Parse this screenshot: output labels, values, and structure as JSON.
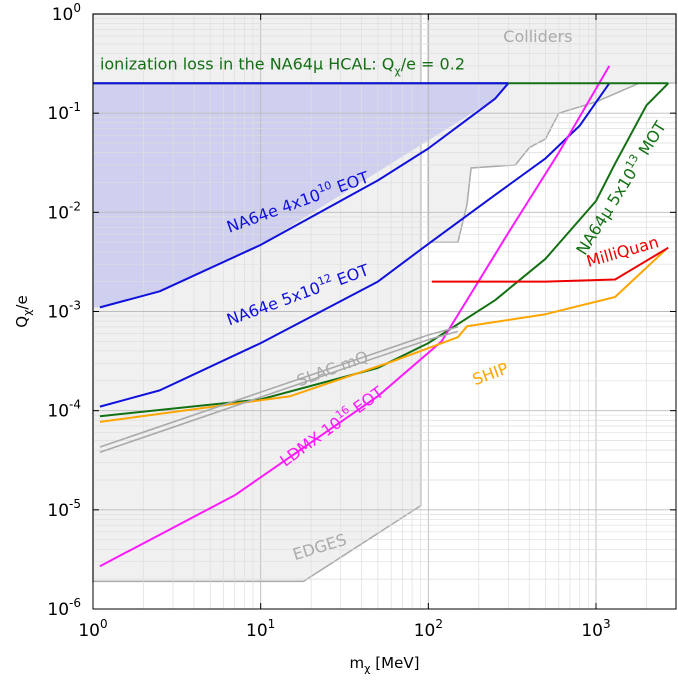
{
  "chart_data": {
    "type": "line",
    "x_scale": "log",
    "y_scale": "log",
    "xlim": [
      1,
      3000
    ],
    "ylim": [
      1e-06,
      1
    ],
    "xlabel": {
      "base": "m",
      "sub": "χ",
      "rest": " [MeV]"
    },
    "ylabel": {
      "base": "Q",
      "sub": "χ",
      "rest": "/e"
    },
    "x_ticks": [
      {
        "value": 1,
        "base": "10",
        "exp": "0"
      },
      {
        "value": 10,
        "base": "10",
        "exp": "1"
      },
      {
        "value": 100,
        "base": "10",
        "exp": "2"
      },
      {
        "value": 1000,
        "base": "10",
        "exp": "3"
      }
    ],
    "y_ticks": [
      {
        "value": 1e-06,
        "base": "10",
        "exp": "-6"
      },
      {
        "value": 1e-05,
        "base": "10",
        "exp": "-5"
      },
      {
        "value": 0.0001,
        "base": "10",
        "exp": "-4"
      },
      {
        "value": 0.001,
        "base": "10",
        "exp": "-3"
      },
      {
        "value": 0.01,
        "base": "10",
        "exp": "-2"
      },
      {
        "value": 0.1,
        "base": "10",
        "exp": "-1"
      },
      {
        "value": 1,
        "base": "10",
        "exp": "0"
      }
    ],
    "grid": true,
    "colors": {
      "na64e": "#1010dd",
      "na64e_fill": "#c9c9ee",
      "na64mu": "#147014",
      "ldmx": "#ff19ff",
      "ship": "#ffa500",
      "milliquan": "#ee0000",
      "excluded": "#aaaaaa",
      "excluded_fill": "#f0f0f0"
    },
    "regions": [
      {
        "name": "excluded-region-colliders",
        "points": [
          [
            100,
            1
          ],
          [
            3000,
            1
          ],
          [
            3000,
            0.2
          ],
          [
            1800,
            0.2
          ],
          [
            1000,
            0.13
          ],
          [
            600,
            0.1
          ],
          [
            500,
            0.055
          ],
          [
            400,
            0.045
          ],
          [
            330,
            0.03
          ],
          [
            180,
            0.028
          ],
          [
            170,
            0.012
          ],
          [
            150,
            0.005
          ],
          [
            100,
            0.005
          ]
        ]
      },
      {
        "name": "excluded-region-slac-edges",
        "points": [
          [
            1,
            1.9e-06
          ],
          [
            18,
            1.9e-06
          ],
          [
            90,
            1.1e-05
          ],
          [
            90,
            1
          ],
          [
            1,
            1
          ]
        ]
      },
      {
        "name": "na64e-excluded-region",
        "points": [
          [
            1,
            0.2
          ],
          [
            300,
            0.2
          ],
          [
            250,
            0.14
          ],
          [
            10,
            0.0047
          ],
          [
            2.5,
            0.0016
          ],
          [
            1.1,
            0.0011
          ],
          [
            1,
            0.0011
          ]
        ]
      }
    ],
    "series": [
      {
        "name": "NA64e 4x10^10 EOT",
        "color_key": "na64e",
        "points": [
          [
            1.1,
            0.0011
          ],
          [
            2.5,
            0.0016
          ],
          [
            10,
            0.0047
          ],
          [
            50,
            0.021
          ],
          [
            100,
            0.044
          ],
          [
            250,
            0.14
          ],
          [
            300,
            0.2
          ]
        ]
      },
      {
        "name": "NA64e 5x10^12 EOT",
        "color_key": "na64e",
        "points": [
          [
            1.1,
            0.00011
          ],
          [
            2.5,
            0.00016
          ],
          [
            10,
            0.00048
          ],
          [
            50,
            0.002
          ],
          [
            100,
            0.0048
          ],
          [
            250,
            0.015
          ],
          [
            500,
            0.035
          ],
          [
            800,
            0.075
          ],
          [
            1200,
            0.2
          ]
        ]
      },
      {
        "name": "NA64μ 5x10^13 MOT",
        "color_key": "na64mu",
        "points": [
          [
            1.1,
            8.8e-05
          ],
          [
            10,
            0.00013
          ],
          [
            50,
            0.00027
          ],
          [
            100,
            0.00048
          ],
          [
            250,
            0.0013
          ],
          [
            500,
            0.0034
          ],
          [
            1000,
            0.013
          ],
          [
            1300,
            0.031
          ],
          [
            2000,
            0.12
          ],
          [
            2700,
            0.2
          ]
        ]
      },
      {
        "name": "LDMX 10^16 EOT",
        "color_key": "ldmx",
        "points": [
          [
            1.1,
            2.7e-06
          ],
          [
            7,
            1.4e-05
          ],
          [
            50,
            0.00014
          ],
          [
            120,
            0.0005
          ],
          [
            300,
            0.0062
          ],
          [
            600,
            0.04
          ],
          [
            1200,
            0.3
          ]
        ]
      },
      {
        "name": "SHIP",
        "color_key": "ship",
        "points": [
          [
            1.1,
            7.7e-05
          ],
          [
            15,
            0.00014
          ],
          [
            60,
            0.00031
          ],
          [
            150,
            0.00055
          ],
          [
            170,
            0.00071
          ],
          [
            500,
            0.00094
          ],
          [
            1300,
            0.0014
          ],
          [
            2600,
            0.0042
          ]
        ]
      },
      {
        "name": "MilliQuan",
        "color_key": "milliquan",
        "points": [
          [
            105,
            0.002
          ],
          [
            500,
            0.002
          ],
          [
            1300,
            0.0021
          ],
          [
            2700,
            0.0044
          ]
        ]
      },
      {
        "name": "ionization loss in the NA64μ HCAL",
        "color_key": "na64e",
        "points": [
          [
            1,
            0.2
          ],
          [
            2700,
            0.2
          ]
        ]
      },
      {
        "name": "slac-mq-upper",
        "color_key": "excluded",
        "points": [
          [
            1.1,
            4.3e-05
          ],
          [
            100,
            0.00058
          ],
          [
            150,
            0.0007
          ]
        ]
      },
      {
        "name": "slac-mq-lower",
        "color_key": "excluded",
        "points": [
          [
            1.1,
            3.8e-05
          ],
          [
            100,
            0.00052
          ],
          [
            150,
            0.00063
          ]
        ]
      }
    ],
    "labels": [
      {
        "key": "colliders",
        "parts": [
          {
            "t": "Colliders"
          }
        ],
        "color_key": "excluded",
        "x": 280,
        "y": 0.52,
        "angle": 0
      },
      {
        "key": "ionization",
        "parts": [
          {
            "t": "ionization loss in the NA64μ HCAL: Q"
          },
          {
            "t": "χ",
            "sub": true
          },
          {
            "t": "/e = 0.2"
          }
        ],
        "color_key": "na64mu",
        "x": 1.1,
        "y": 0.275,
        "angle": 0
      },
      {
        "key": "na64e-4e10",
        "parts": [
          {
            "t": "NA64e 4x10"
          },
          {
            "t": "10",
            "sup": true
          },
          {
            "t": " EOT"
          }
        ],
        "color_key": "na64e",
        "x": 6.5,
        "y": 0.0062,
        "angle": -20
      },
      {
        "key": "na64e-5e12",
        "parts": [
          {
            "t": "NA64e 5x10"
          },
          {
            "t": "12",
            "sup": true
          },
          {
            "t": " EOT"
          }
        ],
        "color_key": "na64e",
        "x": 6.5,
        "y": 0.00072,
        "angle": -20
      },
      {
        "key": "na64mu",
        "parts": [
          {
            "t": "NA64μ 5x10"
          },
          {
            "t": "13",
            "sup": true
          },
          {
            "t": " MOT"
          }
        ],
        "color_key": "na64mu",
        "x": 860,
        "y": 0.0036,
        "angle": -58
      },
      {
        "key": "milliquan",
        "parts": [
          {
            "t": "MilliQuan"
          }
        ],
        "color_key": "milliquan",
        "x": 900,
        "y": 0.0028,
        "angle": -16
      },
      {
        "key": "slac",
        "parts": [
          {
            "t": "SLAC mQ"
          }
        ],
        "color_key": "excluded",
        "x": 17,
        "y": 0.000175,
        "angle": -20
      },
      {
        "key": "ship",
        "parts": [
          {
            "t": "SHIP"
          }
        ],
        "color_key": "ship",
        "x": 190,
        "y": 0.00018,
        "angle": -20
      },
      {
        "key": "ldmx",
        "parts": [
          {
            "t": "LDMX 10"
          },
          {
            "t": "16",
            "sup": true
          },
          {
            "t": " EOT"
          }
        ],
        "color_key": "ldmx",
        "x": 14,
        "y": 2.7e-05,
        "angle": -36
      },
      {
        "key": "edges",
        "parts": [
          {
            "t": "EDGES"
          }
        ],
        "color_key": "excluded",
        "x": 16,
        "y": 3.1e-06,
        "angle": -17
      }
    ]
  }
}
